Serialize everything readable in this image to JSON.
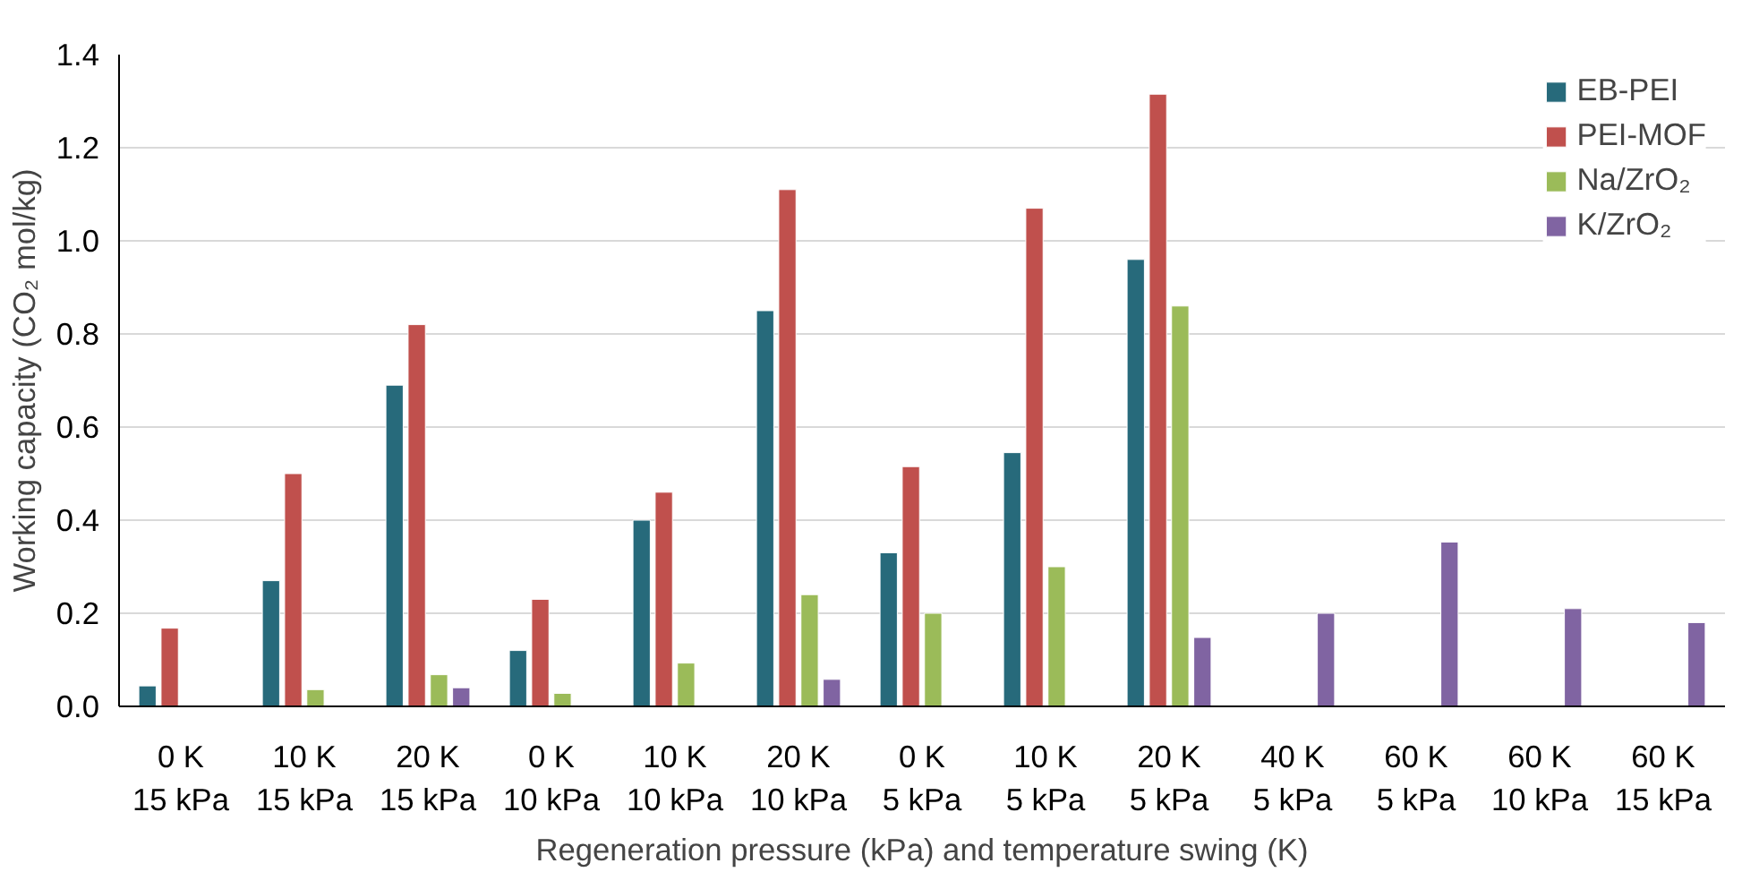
{
  "chart_data": {
    "type": "bar",
    "xlabel": "Regeneration pressure (kPa) and temperature swing (K)",
    "ylabel": "Working capacity (CO₂ mol/kg)",
    "categories": [
      "0 K\n15 kPa",
      "10 K\n15 kPa",
      "20 K\n15 kPa",
      "0 K\n10 kPa",
      "10 K\n10 kPa",
      "20 K\n10 kPa",
      "0 K\n5 kPa",
      "10 K\n5 kPa",
      "20 K\n5 kPa",
      "40 K\n5 kPa",
      "60 K\n5 kPa",
      "60 K\n10 kPa",
      "60 K\n15 kPa"
    ],
    "series": [
      {
        "name": "EB-PEI",
        "color": "#276a7b",
        "values": [
          0.044,
          0.27,
          0.69,
          0.12,
          0.4,
          0.85,
          0.33,
          0.545,
          0.96,
          null,
          null,
          null,
          null
        ]
      },
      {
        "name": "PEI-MOF",
        "color": "#c0504d",
        "values": [
          0.168,
          0.5,
          0.82,
          0.23,
          0.46,
          1.11,
          0.515,
          1.07,
          1.315,
          null,
          null,
          null,
          null
        ]
      },
      {
        "name": "Na/ZrO₂",
        "color": "#9bbb59",
        "values": [
          null,
          0.036,
          0.068,
          0.028,
          0.093,
          0.24,
          0.2,
          0.3,
          0.86,
          null,
          null,
          null,
          null
        ]
      },
      {
        "name": "K/ZrO₂",
        "color": "#8064a2",
        "values": [
          null,
          null,
          0.04,
          null,
          null,
          0.058,
          null,
          null,
          0.148,
          0.2,
          0.353,
          0.21,
          0.18
        ]
      }
    ],
    "ylim": [
      0,
      1.4
    ],
    "yticks": [
      {
        "value": 0,
        "label": "0.0"
      },
      {
        "value": 0.2,
        "label": "0.2"
      },
      {
        "value": 0.4,
        "label": "0.4"
      },
      {
        "value": 0.6,
        "label": "0.6"
      },
      {
        "value": 0.8,
        "label": "0.8"
      },
      {
        "value": 1.0,
        "label": "1.0"
      },
      {
        "value": 1.2,
        "label": "1.2"
      },
      {
        "value": 1.4,
        "label": "1.4"
      }
    ],
    "grid": "y",
    "legend": "top right"
  }
}
